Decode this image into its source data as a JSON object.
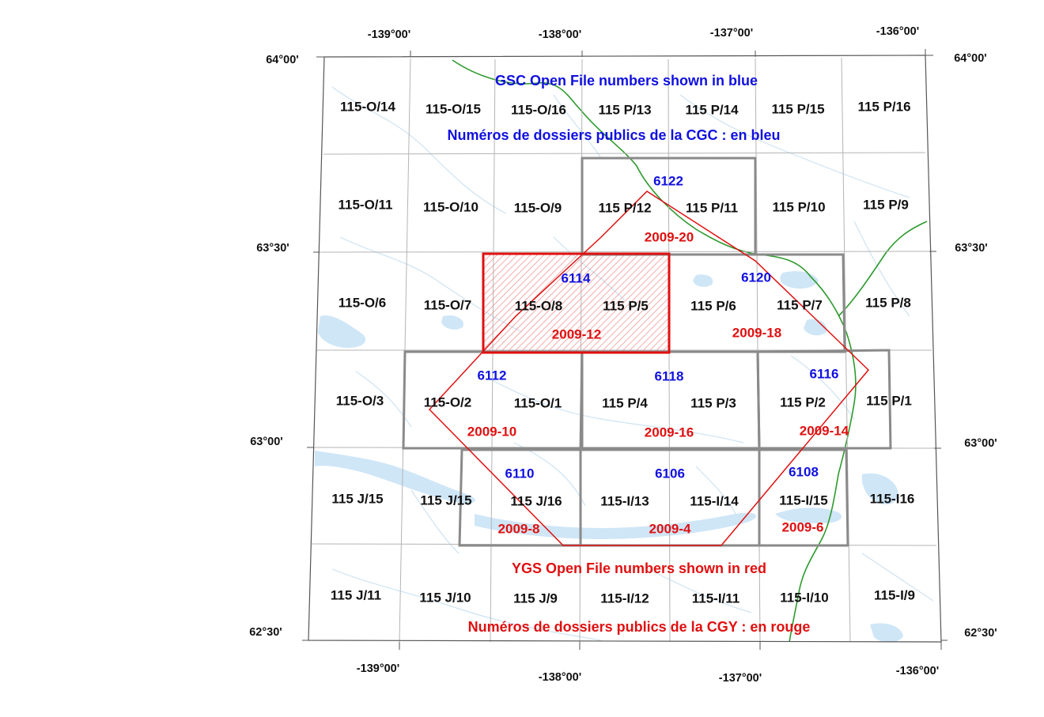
{
  "map": {
    "colors": {
      "frame": "#555555",
      "grid": "#b4b4b4",
      "water": "#cfe6f7",
      "river": "#2e9a2e",
      "gsc_blue": "#1010e0",
      "ygs_red": "#e01010",
      "gsc_box": "#8a8a8a"
    },
    "legend": {
      "gsc_line1": "GSC Open File numbers shown in blue",
      "gsc_line2": "Numéros de dossiers publics de la CGC : en bleu",
      "ygs_line1": "YGS Open File numbers shown in red",
      "ygs_line2": "Numéros de dossiers publics de la CGY : en rouge"
    },
    "lon_top": [
      "-139°00'",
      "-138°00'",
      "-137°00'",
      "-136°00'"
    ],
    "lon_bottom": [
      "-139°00'",
      "-138°00'",
      "-137°00'",
      "-136°00'"
    ],
    "lat_left": [
      "64°00'",
      "63°30'",
      "63°00'",
      "62°30'"
    ],
    "lat_right": [
      "64°00'",
      "63°30'",
      "63°00'",
      "62°30'"
    ],
    "sheets": [
      [
        "115-O/14",
        "115-O/15",
        "115-O/16",
        "115 P/13",
        "115 P/14",
        "115 P/15",
        "115 P/16"
      ],
      [
        "115-O/11",
        "115-O/10",
        "115-O/9",
        "115 P/12",
        "115 P/11",
        "115 P/10",
        "115 P/9"
      ],
      [
        "115-O/6",
        "115-O/7",
        "115-O/8",
        "115 P/5",
        "115 P/6",
        "115 P/7",
        "115 P/8"
      ],
      [
        "115-O/3",
        "115-O/2",
        "115-O/1",
        "115 P/4",
        "115 P/3",
        "115 P/2",
        "115 P/1"
      ],
      [
        "115 J/15",
        "115 J/15",
        "115 J/16",
        "115-I/13",
        "115-I/14",
        "115-I/15",
        "115-I16"
      ],
      [
        "115 J/11",
        "115 J/10",
        "115 J/9",
        "115-I/12",
        "115-I/11",
        "115-I/10",
        "115-I/9"
      ]
    ],
    "gsc_numbers": [
      "6122",
      "6114",
      "6120",
      "6112",
      "6118",
      "6116",
      "6110",
      "6106",
      "6108"
    ],
    "ygs_numbers": [
      "2009-20",
      "2009-12",
      "2009-18",
      "2009-10",
      "2009-16",
      "2009-14",
      "2009-8",
      "2009-4",
      "2009-6"
    ]
  }
}
